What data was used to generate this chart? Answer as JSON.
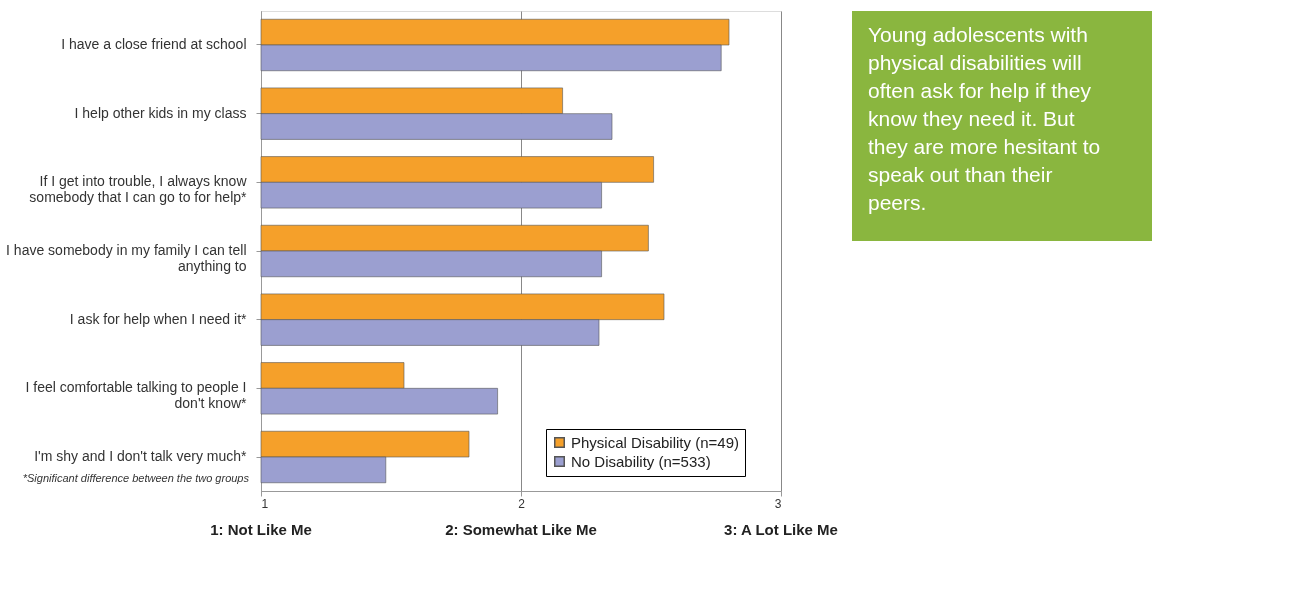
{
  "chart_data": {
    "type": "bar",
    "orientation": "horizontal",
    "categories": [
      "I have a close friend at school",
      "I help other kids in my class",
      "If I get into trouble, I always know somebody that I can go to for help*",
      "I have somebody in my family I can tell anything to",
      "I ask for help when I need it*",
      "I feel comfortable talking to people I don't know*",
      "I'm shy and I don't talk very much*"
    ],
    "series": [
      {
        "name": "Physical Disability (n=49)",
        "color": "#f5a02a",
        "values": [
          2.8,
          2.16,
          2.51,
          2.49,
          2.55,
          1.55,
          1.8
        ]
      },
      {
        "name": "No Disability (n=533)",
        "color": "#9b9fd0",
        "values": [
          2.77,
          2.35,
          2.31,
          2.31,
          2.3,
          1.91,
          1.48
        ]
      }
    ],
    "xlim": [
      1,
      3
    ],
    "xticks": [
      1,
      2,
      3
    ],
    "grid": "x",
    "legend": "bottom right",
    "annotations": [
      "1: Not Like Me",
      "2: Somewhat Like Me",
      "3: A Lot Like Me",
      "*Significant difference between the two groups",
      "Young adolescents with physical disabilities will often ask for help if they know they need it. But they are more hesitant to speak out than their peers."
    ]
  }
}
